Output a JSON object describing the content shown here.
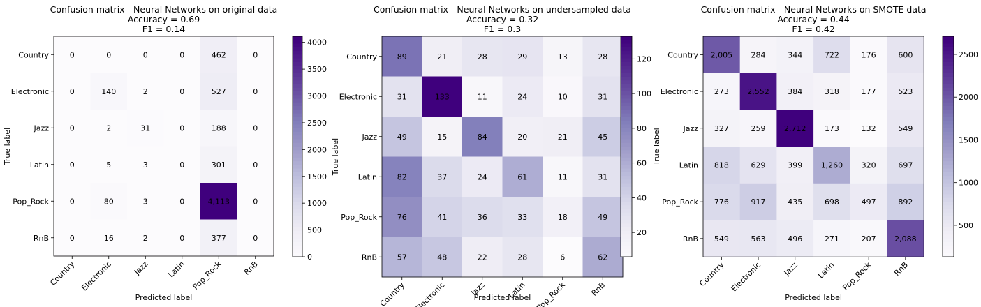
{
  "chart_data": [
    {
      "type": "heatmap",
      "title": "Confusion matrix - Neural Networks on original data",
      "subtitle_lines": [
        "Accuracy = 0.69",
        "F1 = 0.14"
      ],
      "xlabel": "Predicted label",
      "ylabel": "True label",
      "categories": [
        "Country",
        "Electronic",
        "Jazz",
        "Latin",
        "Pop_Rock",
        "RnB"
      ],
      "values": [
        [
          0,
          0,
          0,
          0,
          462,
          0
        ],
        [
          0,
          140,
          2,
          0,
          527,
          0
        ],
        [
          0,
          2,
          31,
          0,
          188,
          0
        ],
        [
          0,
          5,
          3,
          0,
          301,
          0
        ],
        [
          0,
          80,
          3,
          0,
          4113,
          0
        ],
        [
          0,
          16,
          2,
          0,
          377,
          0
        ]
      ],
      "cell_labels": [
        [
          "0",
          "0",
          "0",
          "0",
          "462",
          "0"
        ],
        [
          "0",
          "140",
          "2",
          "0",
          "527",
          "0"
        ],
        [
          "0",
          "2",
          "31",
          "0",
          "188",
          "0"
        ],
        [
          "0",
          "5",
          "3",
          "0",
          "301",
          "0"
        ],
        [
          "0",
          "80",
          "3",
          "0",
          "4,113",
          "0"
        ],
        [
          "0",
          "16",
          "2",
          "0",
          "377",
          "0"
        ]
      ],
      "colorbar": {
        "min": 0,
        "max": 4113,
        "ticks": [
          0,
          500,
          1000,
          1500,
          2000,
          2500,
          3000,
          3500,
          4000
        ],
        "tick_labels": [
          "0",
          "500",
          "1000",
          "1500",
          "2000",
          "2500",
          "3000",
          "3500",
          "4000"
        ]
      },
      "xtick_rotation": 45,
      "colormap": "Purples"
    },
    {
      "type": "heatmap",
      "title": "Confusion matrix - Neural Networks on undersampled data",
      "subtitle_lines": [
        "Accuracy = 0.32",
        "F1 = 0.3"
      ],
      "xlabel": "Predicted label",
      "ylabel": "True label",
      "categories": [
        "Country",
        "Electronic",
        "Jazz",
        "Latin",
        "Pop_Rock",
        "RnB"
      ],
      "values": [
        [
          89,
          21,
          28,
          29,
          13,
          28
        ],
        [
          31,
          133,
          11,
          24,
          10,
          31
        ],
        [
          49,
          15,
          84,
          20,
          21,
          45
        ],
        [
          82,
          37,
          24,
          61,
          11,
          31
        ],
        [
          76,
          41,
          36,
          33,
          18,
          49
        ],
        [
          57,
          48,
          22,
          28,
          6,
          62
        ]
      ],
      "cell_labels": [
        [
          "89",
          "21",
          "28",
          "29",
          "13",
          "28"
        ],
        [
          "31",
          "133",
          "11",
          "24",
          "10",
          "31"
        ],
        [
          "49",
          "15",
          "84",
          "20",
          "21",
          "45"
        ],
        [
          "82",
          "37",
          "24",
          "61",
          "11",
          "31"
        ],
        [
          "76",
          "41",
          "36",
          "33",
          "18",
          "49"
        ],
        [
          "57",
          "48",
          "22",
          "28",
          "6",
          "62"
        ]
      ],
      "colorbar": {
        "min": 6,
        "max": 133,
        "ticks": [
          20,
          40,
          60,
          80,
          100,
          120
        ],
        "tick_labels": [
          "20",
          "40",
          "60",
          "80",
          "100",
          "120"
        ]
      },
      "xtick_rotation": 45,
      "colormap": "Purples"
    },
    {
      "type": "heatmap",
      "title": "Confusion matrix - Neural Networks on SMOTE data",
      "subtitle_lines": [
        "Accuracy = 0.44",
        "F1 = 0.42"
      ],
      "xlabel": "Predicted label",
      "ylabel": "True label",
      "categories": [
        "Country",
        "Electronic",
        "Jazz",
        "Latin",
        "Pop_Rock",
        "RnB"
      ],
      "values": [
        [
          2005,
          284,
          344,
          722,
          176,
          600
        ],
        [
          273,
          2552,
          384,
          318,
          177,
          523
        ],
        [
          327,
          259,
          2712,
          173,
          132,
          549
        ],
        [
          818,
          629,
          399,
          1260,
          320,
          697
        ],
        [
          776,
          917,
          435,
          698,
          497,
          892
        ],
        [
          549,
          563,
          496,
          271,
          207,
          2088
        ]
      ],
      "cell_labels": [
        [
          "2,005",
          "284",
          "344",
          "722",
          "176",
          "600"
        ],
        [
          "273",
          "2,552",
          "384",
          "318",
          "177",
          "523"
        ],
        [
          "327",
          "259",
          "2,712",
          "173",
          "132",
          "549"
        ],
        [
          "818",
          "629",
          "399",
          "1,260",
          "320",
          "697"
        ],
        [
          "776",
          "917",
          "435",
          "698",
          "497",
          "892"
        ],
        [
          "549",
          "563",
          "496",
          "271",
          "207",
          "2,088"
        ]
      ],
      "colorbar": {
        "min": 132,
        "max": 2712,
        "ticks": [
          500,
          1000,
          1500,
          2000,
          2500
        ],
        "tick_labels": [
          "500",
          "1000",
          "1500",
          "2000",
          "2500"
        ]
      },
      "xtick_rotation": 45,
      "colormap": "Purples"
    }
  ]
}
